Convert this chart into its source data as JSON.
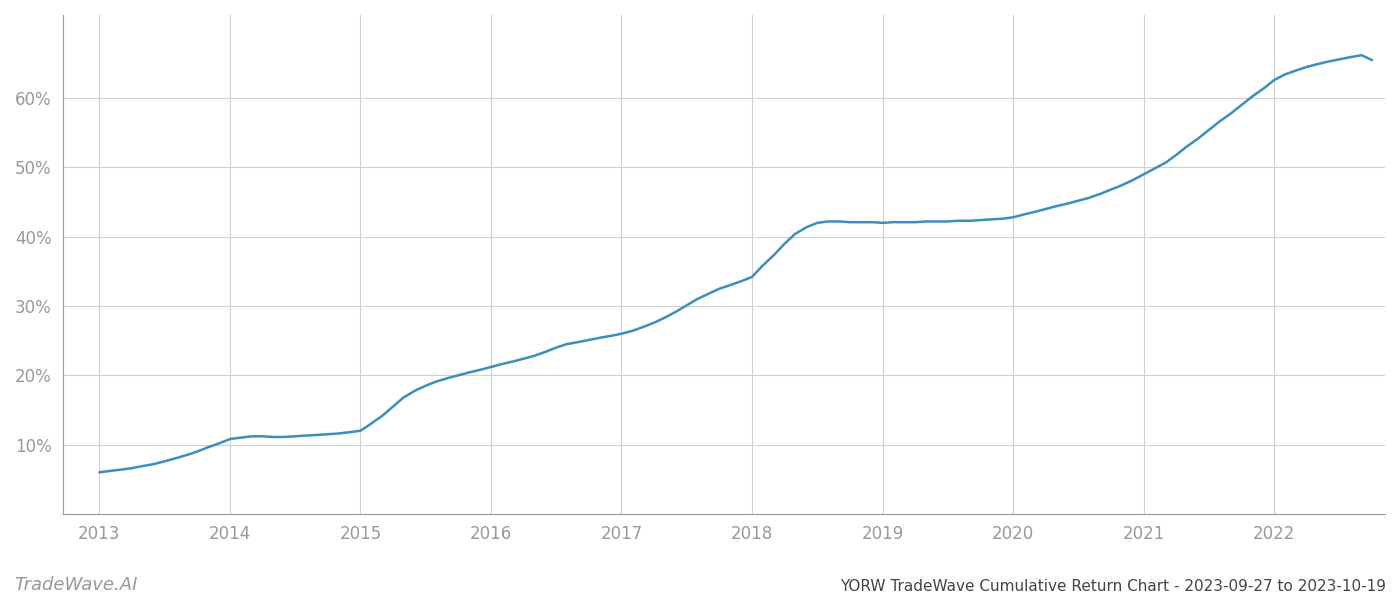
{
  "title": "YORW TradeWave Cumulative Return Chart - 2023-09-27 to 2023-10-19",
  "watermark": "TradeWave.AI",
  "line_color": "#3a8fbf",
  "line_width": 1.8,
  "background_color": "#ffffff",
  "grid_color": "#d0d0d0",
  "x_data": [
    2013.0,
    2013.08,
    2013.17,
    2013.25,
    2013.33,
    2013.42,
    2013.5,
    2013.58,
    2013.67,
    2013.75,
    2013.83,
    2013.92,
    2014.0,
    2014.08,
    2014.17,
    2014.25,
    2014.33,
    2014.42,
    2014.5,
    2014.58,
    2014.67,
    2014.75,
    2014.83,
    2014.92,
    2015.0,
    2015.08,
    2015.17,
    2015.25,
    2015.33,
    2015.42,
    2015.5,
    2015.58,
    2015.67,
    2015.75,
    2015.83,
    2015.92,
    2016.0,
    2016.08,
    2016.17,
    2016.25,
    2016.33,
    2016.42,
    2016.5,
    2016.58,
    2016.67,
    2016.75,
    2016.83,
    2016.92,
    2017.0,
    2017.08,
    2017.17,
    2017.25,
    2017.33,
    2017.42,
    2017.5,
    2017.58,
    2017.67,
    2017.75,
    2017.83,
    2017.92,
    2018.0,
    2018.08,
    2018.17,
    2018.25,
    2018.33,
    2018.42,
    2018.5,
    2018.58,
    2018.67,
    2018.75,
    2018.83,
    2018.92,
    2019.0,
    2019.08,
    2019.17,
    2019.25,
    2019.33,
    2019.42,
    2019.5,
    2019.58,
    2019.67,
    2019.75,
    2019.83,
    2019.92,
    2020.0,
    2020.08,
    2020.17,
    2020.25,
    2020.33,
    2020.42,
    2020.5,
    2020.58,
    2020.67,
    2020.75,
    2020.83,
    2020.92,
    2021.0,
    2021.08,
    2021.17,
    2021.25,
    2021.33,
    2021.42,
    2021.5,
    2021.58,
    2021.67,
    2021.75,
    2021.83,
    2021.92,
    2022.0,
    2022.08,
    2022.17,
    2022.25,
    2022.33,
    2022.42,
    2022.5,
    2022.58,
    2022.67,
    2022.75
  ],
  "y_data": [
    0.06,
    0.062,
    0.064,
    0.066,
    0.069,
    0.072,
    0.076,
    0.08,
    0.085,
    0.09,
    0.096,
    0.102,
    0.108,
    0.11,
    0.112,
    0.112,
    0.111,
    0.111,
    0.112,
    0.113,
    0.114,
    0.115,
    0.116,
    0.118,
    0.12,
    0.13,
    0.142,
    0.155,
    0.168,
    0.178,
    0.185,
    0.191,
    0.196,
    0.2,
    0.204,
    0.208,
    0.212,
    0.216,
    0.22,
    0.224,
    0.228,
    0.234,
    0.24,
    0.245,
    0.248,
    0.251,
    0.254,
    0.257,
    0.26,
    0.264,
    0.27,
    0.276,
    0.283,
    0.292,
    0.301,
    0.31,
    0.318,
    0.325,
    0.33,
    0.336,
    0.342,
    0.358,
    0.374,
    0.39,
    0.404,
    0.414,
    0.42,
    0.422,
    0.422,
    0.421,
    0.421,
    0.421,
    0.42,
    0.421,
    0.421,
    0.421,
    0.422,
    0.422,
    0.422,
    0.423,
    0.423,
    0.424,
    0.425,
    0.426,
    0.428,
    0.432,
    0.436,
    0.44,
    0.444,
    0.448,
    0.452,
    0.456,
    0.462,
    0.468,
    0.474,
    0.482,
    0.49,
    0.498,
    0.507,
    0.518,
    0.53,
    0.542,
    0.554,
    0.566,
    0.578,
    0.59,
    0.602,
    0.614,
    0.626,
    0.634,
    0.64,
    0.645,
    0.649,
    0.653,
    0.656,
    0.659,
    0.662,
    0.655
  ],
  "ylim": [
    0.0,
    0.72
  ],
  "xlim": [
    2012.72,
    2022.85
  ],
  "yticks": [
    0.1,
    0.2,
    0.3,
    0.4,
    0.5,
    0.6
  ],
  "ytick_labels": [
    "10%",
    "20%",
    "30%",
    "40%",
    "50%",
    "60%"
  ],
  "xtick_labels": [
    "2013",
    "2014",
    "2015",
    "2016",
    "2017",
    "2018",
    "2019",
    "2020",
    "2021",
    "2022"
  ],
  "xtick_positions": [
    2013,
    2014,
    2015,
    2016,
    2017,
    2018,
    2019,
    2020,
    2021,
    2022
  ],
  "tick_color": "#999999",
  "spine_color": "#999999",
  "label_fontsize": 12,
  "watermark_fontsize": 13,
  "title_fontsize": 11
}
